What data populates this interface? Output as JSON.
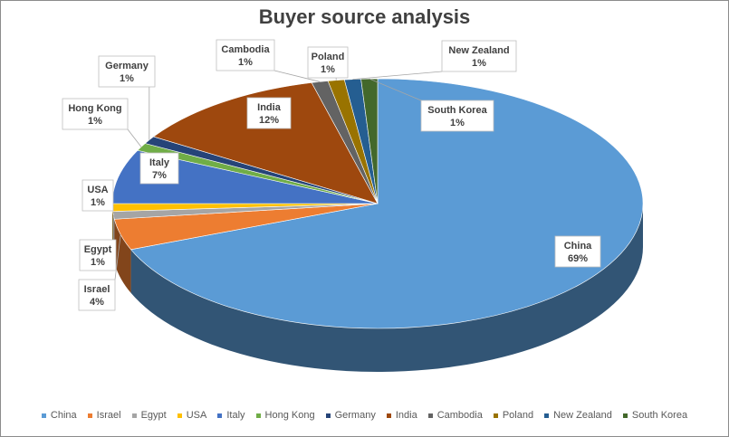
{
  "chart_data": {
    "type": "pie",
    "title": "Buyer source analysis",
    "categories": [
      "China",
      "Israel",
      "Egypt",
      "USA",
      "Italy",
      "Hong Kong",
      "Germany",
      "India",
      "Cambodia",
      "Poland",
      "New Zealand",
      "South Korea"
    ],
    "values": [
      69,
      4,
      1,
      1,
      7,
      1,
      1,
      12,
      1,
      1,
      1,
      1
    ],
    "value_labels": [
      "69%",
      "4%",
      "1%",
      "1%",
      "7%",
      "1%",
      "1%",
      "12%",
      "1%",
      "1%",
      "1%",
      "1%"
    ],
    "colors": [
      "#5b9bd5",
      "#ed7d31",
      "#a5a5a5",
      "#ffc000",
      "#4472c4",
      "#70ad47",
      "#264478",
      "#9e480e",
      "#636363",
      "#997300",
      "#255e91",
      "#43682b"
    ],
    "legend_position": "bottom",
    "style": "3d-pie"
  }
}
